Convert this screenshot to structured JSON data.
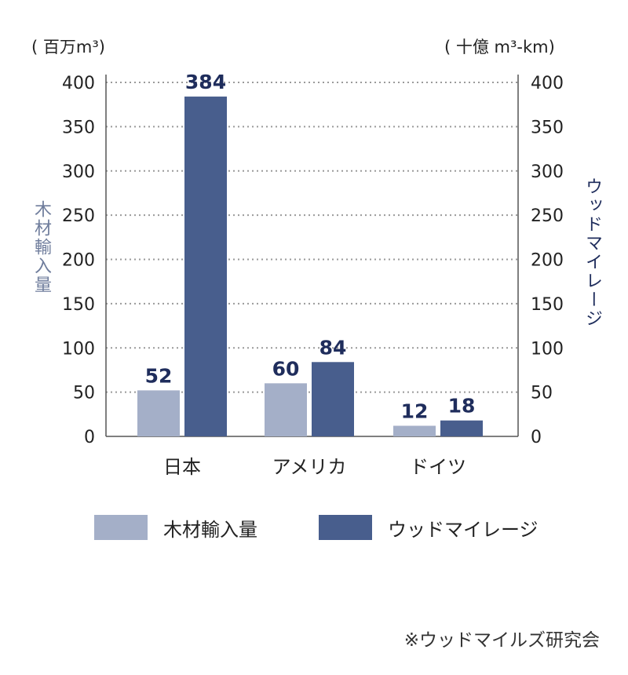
{
  "chart_data": {
    "type": "bar",
    "categories": [
      "日本",
      "アメリカ",
      "ドイツ"
    ],
    "series": [
      {
        "name": "木材輸入量",
        "values": [
          52,
          60,
          12
        ],
        "data_labels": [
          "52",
          "60",
          "12"
        ],
        "color": "#a4afc8"
      },
      {
        "name": "ウッドマイレージ",
        "values": [
          384,
          84,
          18
        ],
        "data_labels": [
          "384",
          "84",
          "18"
        ],
        "color": "#485e8d"
      }
    ],
    "ylabel_left": "木材輸入量",
    "ylabel_right": "ウッドマイレージ",
    "unit_left": "( 百万m³)",
    "unit_right": "( 十億 m³-km)",
    "ylim": [
      0,
      400
    ],
    "yticks": [
      "0",
      "50",
      "100",
      "150",
      "200",
      "250",
      "300",
      "350",
      "400"
    ],
    "grid": true,
    "legend_position": "bottom",
    "data_label_color": "#1f2d5c",
    "source_note": "※ウッドマイルズ研究会"
  }
}
